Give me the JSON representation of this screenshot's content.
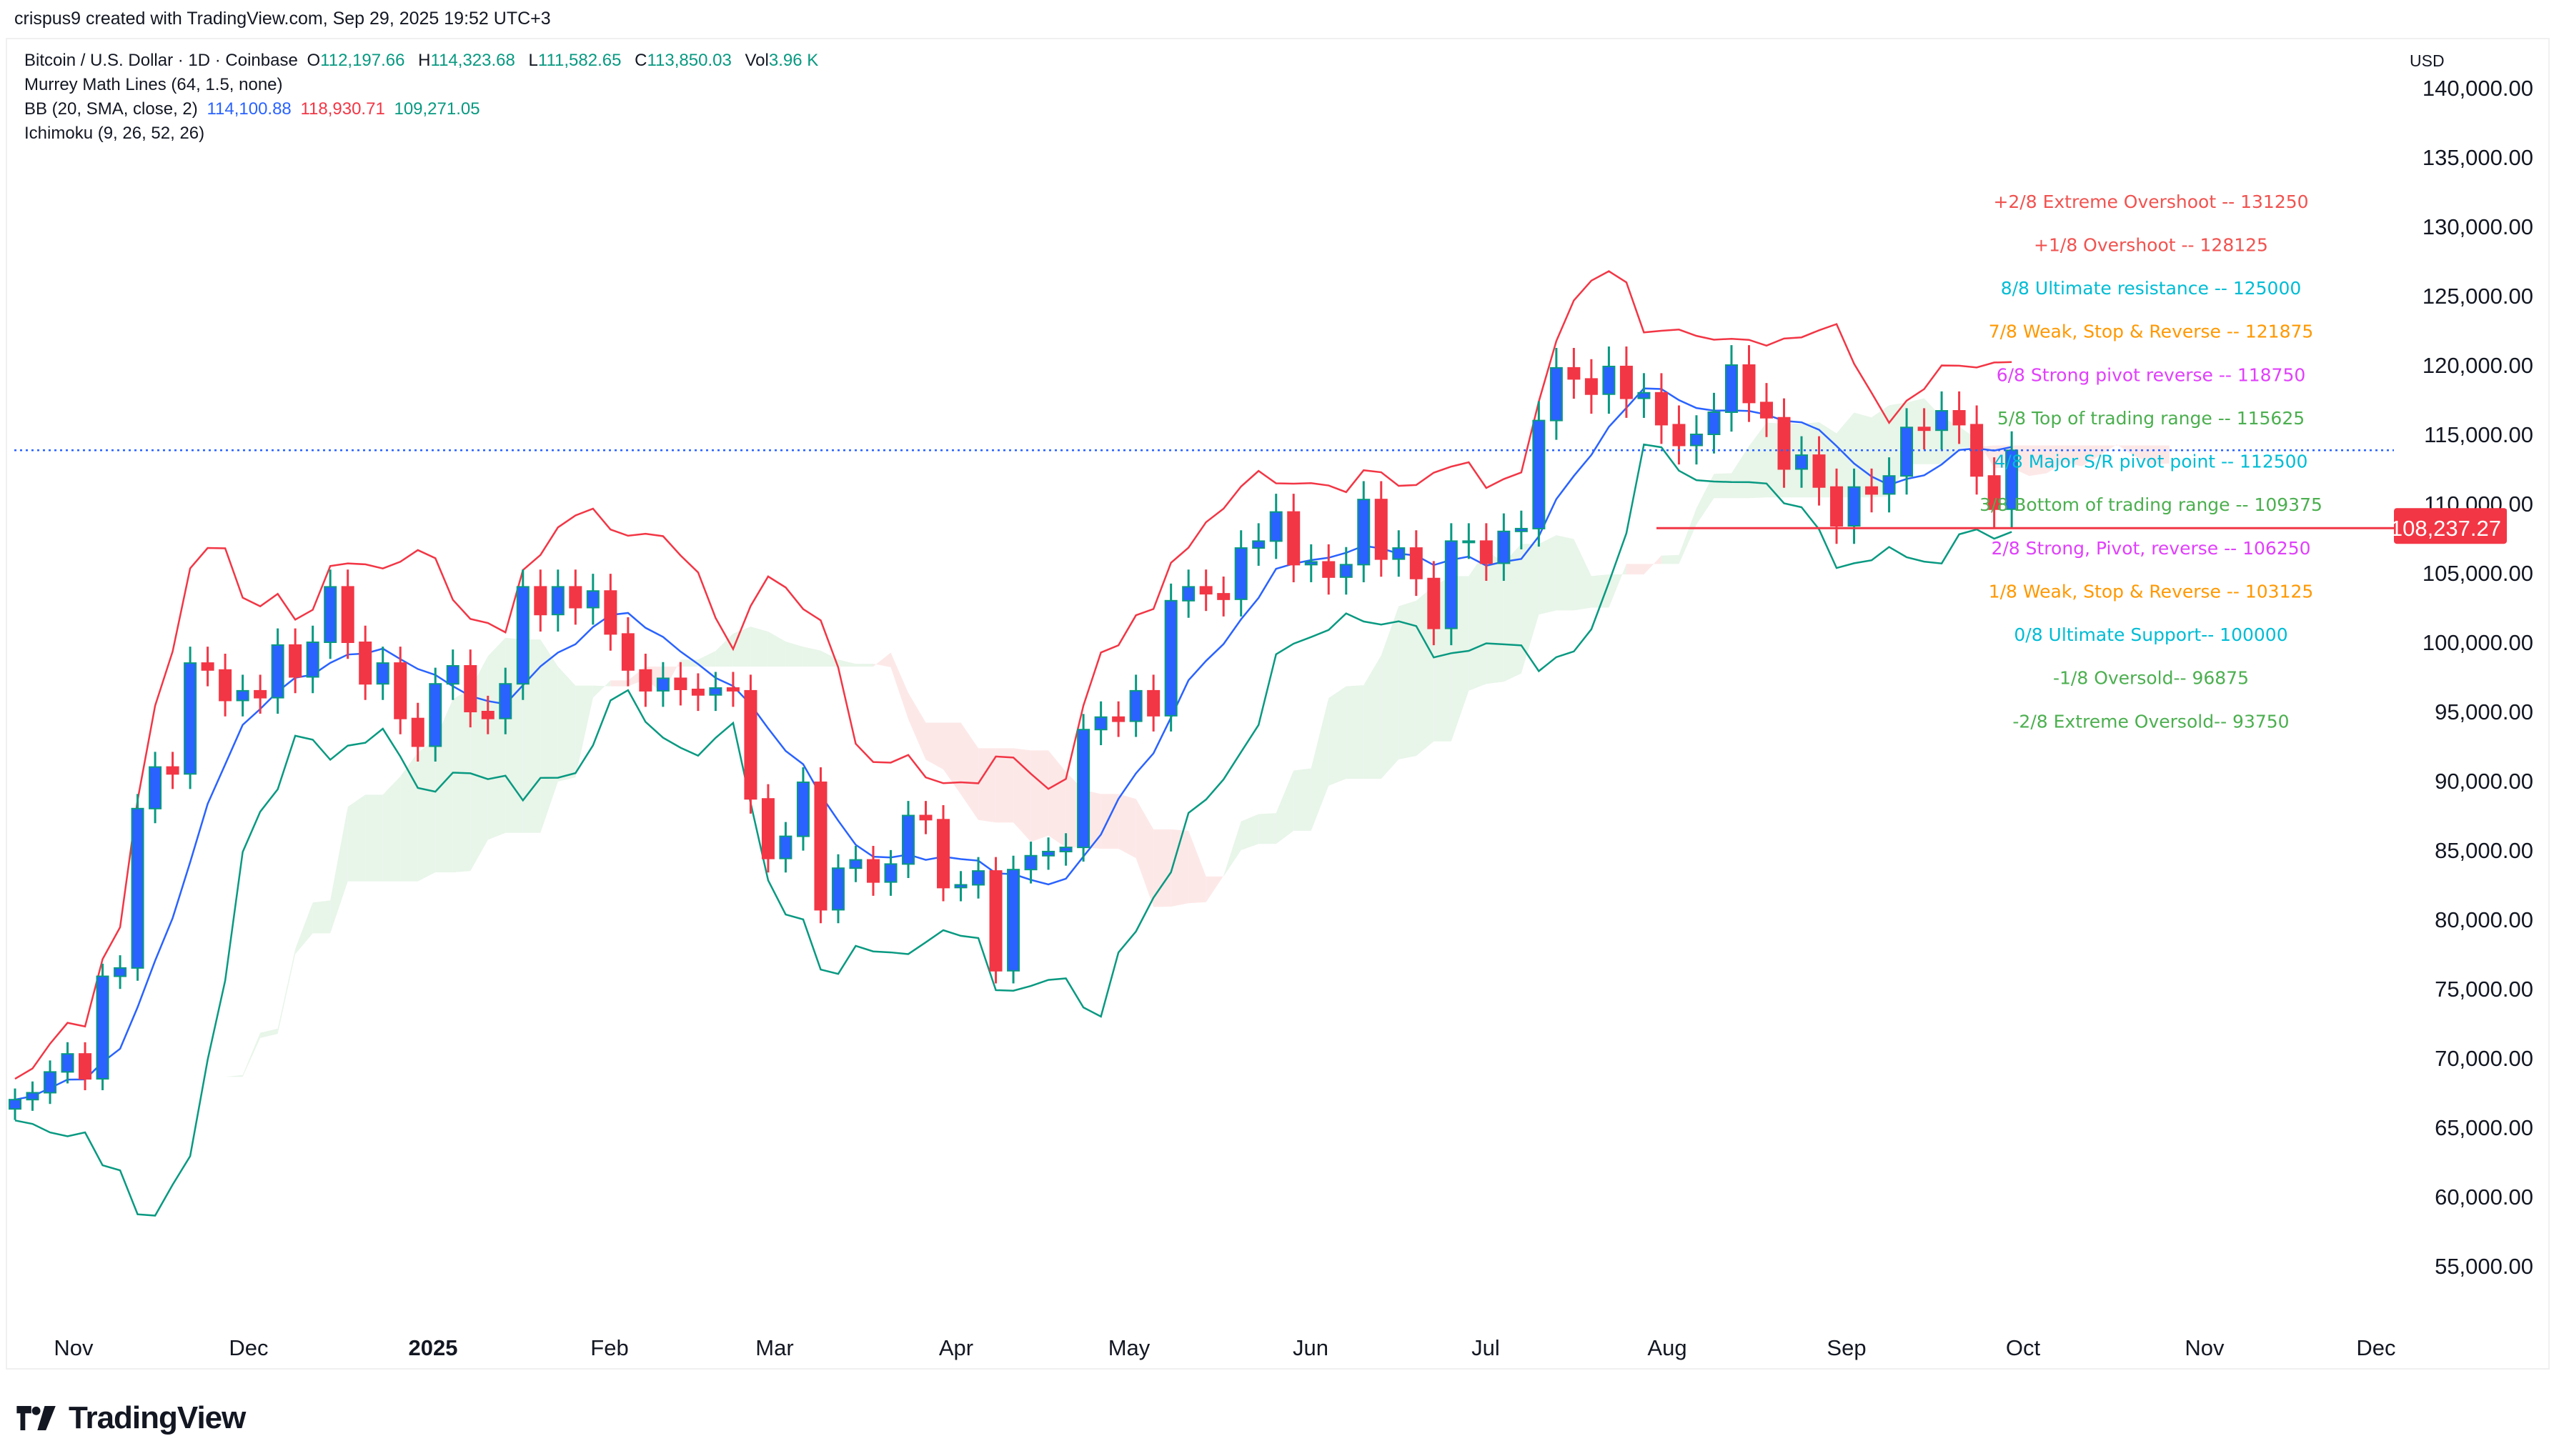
{
  "attribution": "crispus9 created with TradingView.com, Sep 29, 2025 19:52 UTC+3",
  "legend": {
    "symbol": "Bitcoin / U.S. Dollar · 1D · Coinbase",
    "o_label": "O",
    "o": "112,197.66",
    "h_label": "H",
    "h": "114,323.68",
    "l_label": "L",
    "l": "111,582.65",
    "c_label": "C",
    "c": "113,850.03",
    "vol_label": "Vol",
    "vol": "3.96 K",
    "murrey": "Murrey Math Lines (64, 1.5, none)",
    "bb": "BB (20, SMA, close, 2)",
    "bb_basis": "114,100.88",
    "bb_upper": "118,930.71",
    "bb_lower": "109,271.05",
    "ichimoku": "Ichimoku (9, 26, 52, 26)"
  },
  "currency": "USD",
  "logo_text": "TradingView",
  "colors": {
    "up_body": "#2962ff",
    "up_wick": "#089981",
    "down": "#f23645",
    "bb_basis": "#2962ff",
    "bb_upper": "#f23645",
    "bb_lower": "#089981",
    "cloud_up": "#e8f5e9",
    "cloud_down": "#fde8e8",
    "last_price": "#2962ff",
    "support": "#f23645"
  },
  "chart_data": {
    "type": "candlestick",
    "title": "",
    "price_axis_ticks": [
      "140,000.00",
      "135,000.00",
      "130,000.00",
      "125,000.00",
      "120,000.00",
      "115,000.00",
      "110,000.00",
      "105,000.00",
      "100,000.00",
      "95,000.00",
      "90,000.00",
      "85,000.00",
      "80,000.00",
      "75,000.00",
      "70,000.00",
      "65,000.00",
      "60,000.00",
      "55,000.00"
    ],
    "ylim": [
      55000,
      140000
    ],
    "time_axis_labels": [
      {
        "label": "Nov",
        "bold": false
      },
      {
        "label": "Dec",
        "bold": false
      },
      {
        "label": "2025",
        "bold": true
      },
      {
        "label": "Feb",
        "bold": false
      },
      {
        "label": "Mar",
        "bold": false
      },
      {
        "label": "Apr",
        "bold": false
      },
      {
        "label": "May",
        "bold": false
      },
      {
        "label": "Jun",
        "bold": false
      },
      {
        "label": "Jul",
        "bold": false
      },
      {
        "label": "Aug",
        "bold": false
      },
      {
        "label": "Sep",
        "bold": false
      },
      {
        "label": "Oct",
        "bold": false
      },
      {
        "label": "Nov",
        "bold": false
      },
      {
        "label": "Dec",
        "bold": false
      }
    ],
    "close_prices_k": [
      67,
      67.5,
      69,
      70.3,
      68.5,
      75.9,
      76.5,
      88,
      91,
      90.5,
      98.5,
      98,
      95.8,
      96.5,
      96,
      99.8,
      97.5,
      100,
      104,
      100,
      97,
      98.5,
      94.5,
      92.5,
      97,
      98.3,
      95,
      94.5,
      97,
      104,
      102,
      104,
      102.5,
      103.7,
      100.6,
      98,
      96.5,
      97.4,
      96.6,
      96.2,
      96.7,
      96.5,
      88.7,
      84.4,
      86,
      89.9,
      80.7,
      83.7,
      84.3,
      82.7,
      84,
      87.5,
      87.2,
      82.3,
      82.5,
      83.5,
      76.3,
      83.6,
      84.6,
      84.9,
      85.2,
      93.7,
      94.6,
      94.3,
      96.5,
      94.7,
      103,
      104,
      103.5,
      103.1,
      106.8,
      107.3,
      109.4,
      105.6,
      105.8,
      104.7,
      105.6,
      110.3,
      106,
      106.8,
      104.6,
      101,
      107.3,
      107.3,
      105.7,
      108,
      108.2,
      116,
      119.8,
      119,
      117.9,
      119.9,
      117.6,
      118,
      115.7,
      114.2,
      115,
      116.6,
      120,
      117.3,
      116.2,
      112.5,
      113.5,
      111.2,
      108.4,
      111.2,
      110.7,
      112,
      115.5,
      115.3,
      116.7,
      115.7,
      112,
      109.6,
      113.85
    ],
    "last_price": 113850.03,
    "support_line": {
      "value": 108237.27,
      "label": "108,237.27"
    },
    "murrey_levels": [
      {
        "text": "+2/8 Extreme Overshoot --  131250",
        "value": 131250,
        "color": "#f05350"
      },
      {
        "text": "+1/8 Overshoot --  128125",
        "value": 128125,
        "color": "#f05350"
      },
      {
        "text": "8/8 Ultimate resistance --  125000",
        "value": 125000,
        "color": "#00bcd4"
      },
      {
        "text": "7/8 Weak, Stop & Reverse --  121875",
        "value": 121875,
        "color": "#ff9800"
      },
      {
        "text": "6/8 Strong pivot reverse --  118750",
        "value": 118750,
        "color": "#e040fb"
      },
      {
        "text": "5/8 Top of trading range --  115625",
        "value": 115625,
        "color": "#4caf50"
      },
      {
        "text": "4/8 Major S/R pivot point --  112500",
        "value": 112500,
        "color": "#00bcd4"
      },
      {
        "text": "3/8 Bottom of trading range --  109375",
        "value": 109375,
        "color": "#4caf50"
      },
      {
        "text": "2/8 Strong, Pivot, reverse --  106250",
        "value": 106250,
        "color": "#e040fb"
      },
      {
        "text": "1/8 Weak, Stop & Reverse --  103125",
        "value": 103125,
        "color": "#ff9800"
      },
      {
        "text": "0/8 Ultimate Support--  100000",
        "value": 100000,
        "color": "#00bcd4"
      },
      {
        "text": "-1/8 Oversold--  96875",
        "value": 96875,
        "color": "#4caf50"
      },
      {
        "text": "-2/8 Extreme Oversold--  93750",
        "value": 93750,
        "color": "#4caf50"
      }
    ]
  }
}
